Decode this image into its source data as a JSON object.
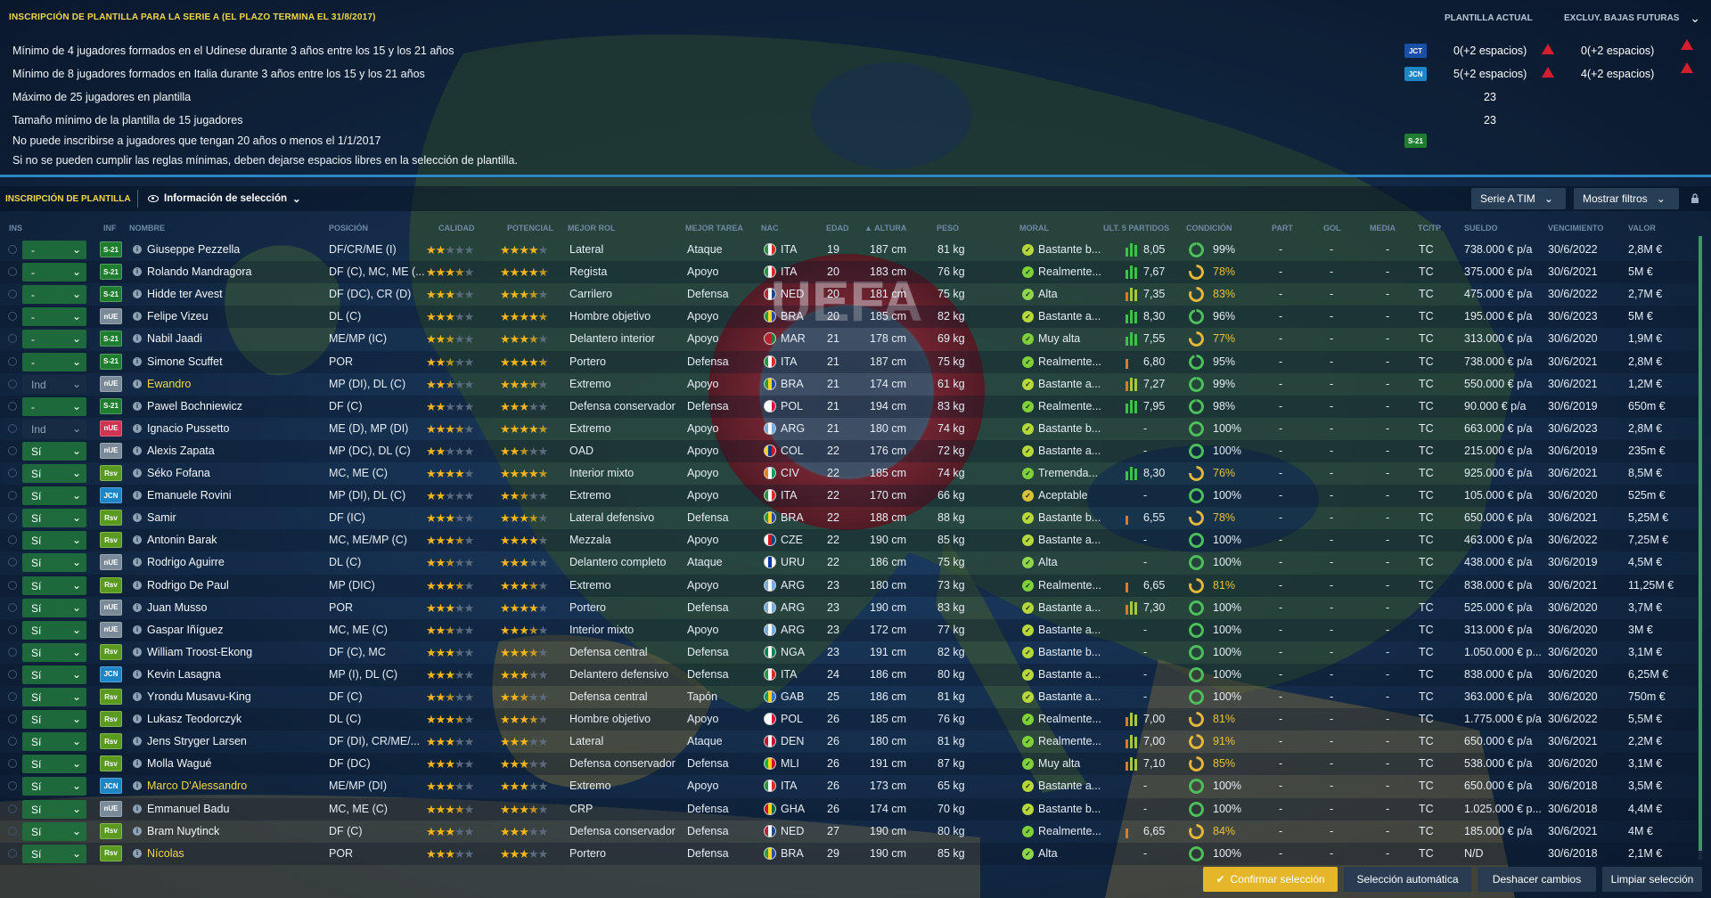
{
  "header": {
    "title": "INSCRIPCIÓN DE PLANTILLA PARA LA SERIE A (EL PLAZO TERMINA EL 31/8/2017)",
    "col_current": "PLANTILLA ACTUAL",
    "col_future": "EXCLUY. BAJAS FUTURAS"
  },
  "rules": [
    {
      "text": "Mínimo de 4 jugadores formados en el Udinese durante 3 años entre los 15 y los 21 años",
      "badge": "JCT",
      "current": "0(+2 espacios)",
      "future": "0(+2 espacios)",
      "warn": true
    },
    {
      "text": "Mínimo de 8 jugadores formados en Italia durante 3 años entre los 15 y los 21 años",
      "badge": "JCN",
      "current": "5(+2 espacios)",
      "future": "4(+2 espacios)",
      "warn": true
    },
    {
      "text": "Máximo de 25 jugadores en plantilla",
      "badge": "",
      "current": "23",
      "future": "",
      "warn": false
    },
    {
      "text": "Tamaño mínimo de la plantilla de 15 jugadores",
      "badge": "",
      "current": "23",
      "future": "",
      "warn": false
    },
    {
      "text": "No puede inscribirse a jugadores que tengan 20 años o menos el 1/1/2017",
      "badge": "S-21",
      "current": "",
      "future": "",
      "warn": false
    },
    {
      "text": "Si no se pueden cumplir las reglas mínimas, deben dejarse espacios libres en la selección de plantilla.",
      "badge": "",
      "current": "",
      "future": "",
      "warn": false
    }
  ],
  "toolbar": {
    "title": "INSCRIPCIÓN DE PLANTILLA",
    "view": "Información de selección",
    "competition": "Serie A TIM",
    "filters": "Mostrar filtros"
  },
  "columns": {
    "ins": "INS",
    "inf": "INF",
    "name": "NOMBRE",
    "position": "POSICIÓN",
    "ability": "CALIDAD",
    "potential": "POTENCIAL",
    "role": "MEJOR ROL",
    "duty": "MEJOR TAREA",
    "nat": "NAC",
    "age": "EDAD",
    "height": "ALTURA",
    "weight": "PESO",
    "morale": "MORAL",
    "form": "ULT. 5 PARTIDOS",
    "condition": "CONDICIÓN",
    "apps": "PART",
    "goals": "GOL",
    "avg": "MEDIA",
    "tctp": "TC/TP",
    "wage": "SUELDO",
    "expires": "VENCIMIENTO",
    "value": "VALOR"
  },
  "colors": {
    "s21": "#1f7d2f",
    "nue": "#7b8a99",
    "nue_red": "#cf3550",
    "rsv": "#5a9a1e",
    "jcn": "#1d86c7",
    "jct": "#1a4fa8",
    "accent": "#f0d84a",
    "green": "#21703c"
  },
  "players": [
    {
      "ins": "-",
      "badge": "S-21",
      "name": "Giuseppe Pezzella",
      "pos": "DF/CR/ME (I)",
      "ca": 2.0,
      "pa": 4.0,
      "role": "Lateral",
      "duty": "Ataque",
      "nat": "ITA",
      "age": "19",
      "height": "187 cm",
      "weight": "81 kg",
      "morale": "Bastante b...",
      "form": "8,05",
      "cond": "99%",
      "apps": "-",
      "goals": "-",
      "avg": "-",
      "tc": "TC",
      "wage": "738.000 € p/a",
      "exp": "30/6/2022",
      "value": "2,8M €"
    },
    {
      "ins": "-",
      "badge": "S-21",
      "name": "Rolando Mandragora",
      "pos": "DF (C), MC, ME (...",
      "ca": 3.5,
      "pa": 4.5,
      "role": "Regista",
      "duty": "Apoyo",
      "nat": "ITA",
      "age": "20",
      "height": "183 cm",
      "weight": "76 kg",
      "morale": "Realmente...",
      "form": "7,67",
      "cond": "78%",
      "apps": "-",
      "goals": "-",
      "avg": "-",
      "tc": "TC",
      "wage": "375.000 € p/a",
      "exp": "30/6/2021",
      "value": "5M €"
    },
    {
      "ins": "-",
      "badge": "S-21",
      "name": "Hidde ter Avest",
      "pos": "DF (DC), CR (D)",
      "ca": 3.0,
      "pa": 3.5,
      "role": "Carrilero",
      "duty": "Defensa",
      "nat": "NED",
      "age": "20",
      "height": "181 cm",
      "weight": "75 kg",
      "morale": "Alta",
      "form": "7,35",
      "cond": "83%",
      "apps": "-",
      "goals": "-",
      "avg": "-",
      "tc": "TC",
      "wage": "475.000 € p/a",
      "exp": "30/6/2022",
      "value": "2,7M €"
    },
    {
      "ins": "-",
      "badge": "nUE",
      "name": "Felipe Vizeu",
      "pos": "DL (C)",
      "ca": 3.0,
      "pa": 4.5,
      "role": "Hombre objetivo",
      "duty": "Apoyo",
      "nat": "BRA",
      "age": "20",
      "height": "185 cm",
      "weight": "82 kg",
      "morale": "Bastante a...",
      "form": "8,30",
      "cond": "96%",
      "apps": "-",
      "goals": "-",
      "avg": "-",
      "tc": "TC",
      "wage": "195.000 € p/a",
      "exp": "30/6/2023",
      "value": "5M €"
    },
    {
      "ins": "-",
      "badge": "S-21",
      "name": "Nabil Jaadi",
      "pos": "ME/MP (IC)",
      "ca": 2.5,
      "pa": 3.5,
      "role": "Delantero interior",
      "duty": "Apoyo",
      "nat": "MAR",
      "age": "21",
      "height": "178 cm",
      "weight": "69 kg",
      "morale": "Muy alta",
      "form": "7,55",
      "cond": "77%",
      "apps": "-",
      "goals": "-",
      "avg": "-",
      "tc": "TC",
      "wage": "313.000 € p/a",
      "exp": "30/6/2020",
      "value": "1,9M €"
    },
    {
      "ins": "-",
      "badge": "S-21",
      "name": "Simone Scuffet",
      "pos": "POR",
      "ca": 2.5,
      "pa": 4.5,
      "role": "Portero",
      "duty": "Defensa",
      "nat": "ITA",
      "age": "21",
      "height": "187 cm",
      "weight": "75 kg",
      "morale": "Realmente...",
      "form": "6,80",
      "cond": "95%",
      "apps": "-",
      "goals": "-",
      "avg": "-",
      "tc": "TC",
      "wage": "738.000 € p/a",
      "exp": "30/6/2021",
      "value": "2,8M €"
    },
    {
      "ins": "Ind",
      "badge": "nUE",
      "name": "Ewandro",
      "pos": "MP (DI), DL (C)",
      "ca": 2.5,
      "pa": 3.5,
      "role": "Extremo",
      "duty": "Apoyo",
      "nat": "BRA",
      "age": "21",
      "height": "174 cm",
      "weight": "61 kg",
      "morale": "Bastante a...",
      "form": "7,27",
      "cond": "99%",
      "apps": "-",
      "goals": "-",
      "avg": "-",
      "tc": "TC",
      "wage": "550.000 € p/a",
      "exp": "30/6/2021",
      "value": "1,2M €"
    },
    {
      "ins": "-",
      "badge": "S-21",
      "name": "Pawel Bochniewicz",
      "pos": "DF (C)",
      "ca": 2.0,
      "pa": 3.0,
      "role": "Defensa conservador",
      "duty": "Defensa",
      "nat": "POL",
      "age": "21",
      "height": "194 cm",
      "weight": "83 kg",
      "morale": "Realmente...",
      "form": "7,95",
      "cond": "98%",
      "apps": "-",
      "goals": "-",
      "avg": "-",
      "tc": "TC",
      "wage": "90.000 € p/a",
      "exp": "30/6/2019",
      "value": "650m €"
    },
    {
      "ins": "Ind",
      "badge": "nUE",
      "name": "Ignacio Pussetto",
      "pos": "ME (D), MP (DI)",
      "ca": 3.5,
      "pa": 4.5,
      "role": "Extremo",
      "duty": "Apoyo",
      "nat": "ARG",
      "age": "21",
      "height": "180 cm",
      "weight": "74 kg",
      "morale": "Bastante b...",
      "form": "-",
      "cond": "100%",
      "apps": "-",
      "goals": "-",
      "avg": "-",
      "tc": "TC",
      "wage": "663.000 € p/a",
      "exp": "30/6/2023",
      "value": "2,8M €"
    },
    {
      "ins": "Sí",
      "badge": "nUE",
      "name": "Alexis Zapata",
      "pos": "MP (DC), DL (C)",
      "ca": 2.0,
      "pa": 2.5,
      "role": "OAD",
      "duty": "Apoyo",
      "nat": "COL",
      "age": "22",
      "height": "176 cm",
      "weight": "72 kg",
      "morale": "Bastante a...",
      "form": "-",
      "cond": "100%",
      "apps": "-",
      "goals": "-",
      "avg": "-",
      "tc": "TC",
      "wage": "215.000 € p/a",
      "exp": "30/6/2019",
      "value": "235m €"
    },
    {
      "ins": "Sí",
      "badge": "Rsv",
      "name": "Séko Fofana",
      "pos": "MC, ME (C)",
      "ca": 4.0,
      "pa": 4.5,
      "role": "Interior mixto",
      "duty": "Apoyo",
      "nat": "CIV",
      "age": "22",
      "height": "185 cm",
      "weight": "74 kg",
      "morale": "Tremenda...",
      "form": "8,30",
      "cond": "76%",
      "apps": "-",
      "goals": "-",
      "avg": "-",
      "tc": "TC",
      "wage": "925.000 € p/a",
      "exp": "30/6/2021",
      "value": "8,5M €"
    },
    {
      "ins": "Sí",
      "badge": "JCN",
      "name": "Emanuele Rovini",
      "pos": "MP (DI), DL (C)",
      "ca": 2.0,
      "pa": 2.5,
      "role": "Extremo",
      "duty": "Apoyo",
      "nat": "ITA",
      "age": "22",
      "height": "170 cm",
      "weight": "66 kg",
      "morale": "Aceptable",
      "form": "-",
      "cond": "100%",
      "apps": "-",
      "goals": "-",
      "avg": "-",
      "tc": "TC",
      "wage": "105.000 € p/a",
      "exp": "30/6/2020",
      "value": "525m €"
    },
    {
      "ins": "Sí",
      "badge": "Rsv",
      "name": "Samir",
      "pos": "DF (IC)",
      "ca": 3.0,
      "pa": 3.5,
      "role": "Lateral defensivo",
      "duty": "Defensa",
      "nat": "BRA",
      "age": "22",
      "height": "188 cm",
      "weight": "88 kg",
      "morale": "Bastante b...",
      "form": "6,55",
      "cond": "78%",
      "apps": "-",
      "goals": "-",
      "avg": "-",
      "tc": "TC",
      "wage": "650.000 € p/a",
      "exp": "30/6/2021",
      "value": "5,25M €"
    },
    {
      "ins": "Sí",
      "badge": "Rsv",
      "name": "Antonin Barak",
      "pos": "MC, ME/MP (C)",
      "ca": 3.5,
      "pa": 4.0,
      "role": "Mezzala",
      "duty": "Apoyo",
      "nat": "CZE",
      "age": "22",
      "height": "190 cm",
      "weight": "85 kg",
      "morale": "Bastante a...",
      "form": "-",
      "cond": "100%",
      "apps": "-",
      "goals": "-",
      "avg": "-",
      "tc": "TC",
      "wage": "463.000 € p/a",
      "exp": "30/6/2022",
      "value": "7,25M €"
    },
    {
      "ins": "Sí",
      "badge": "nUE",
      "name": "Rodrigo Aguirre",
      "pos": "DL (C)",
      "ca": 2.5,
      "pa": 3.0,
      "role": "Delantero completo",
      "duty": "Ataque",
      "nat": "URU",
      "age": "22",
      "height": "186 cm",
      "weight": "75 kg",
      "morale": "Alta",
      "form": "-",
      "cond": "100%",
      "apps": "-",
      "goals": "-",
      "avg": "-",
      "tc": "TC",
      "wage": "438.000 € p/a",
      "exp": "30/6/2019",
      "value": "4,5M €"
    },
    {
      "ins": "Sí",
      "badge": "Rsv",
      "name": "Rodrigo De Paul",
      "pos": "MP (DIC)",
      "ca": 3.5,
      "pa": 3.5,
      "role": "Extremo",
      "duty": "Apoyo",
      "nat": "ARG",
      "age": "23",
      "height": "180 cm",
      "weight": "73 kg",
      "morale": "Realmente...",
      "form": "6,65",
      "cond": "81%",
      "apps": "-",
      "goals": "-",
      "avg": "-",
      "tc": "TC",
      "wage": "838.000 € p/a",
      "exp": "30/6/2021",
      "value": "11,25M €"
    },
    {
      "ins": "Sí",
      "badge": "nUE",
      "name": "Juan Musso",
      "pos": "POR",
      "ca": 3.0,
      "pa": 4.0,
      "role": "Portero",
      "duty": "Defensa",
      "nat": "ARG",
      "age": "23",
      "height": "190 cm",
      "weight": "83 kg",
      "morale": "Bastante a...",
      "form": "7,30",
      "cond": "100%",
      "apps": "-",
      "goals": "-",
      "avg": "-",
      "tc": "TC",
      "wage": "525.000 € p/a",
      "exp": "30/6/2020",
      "value": "3,7M €"
    },
    {
      "ins": "Sí",
      "badge": "nUE",
      "name": "Gaspar Iñíguez",
      "pos": "MC, ME (C)",
      "ca": 2.5,
      "pa": 3.5,
      "role": "Interior mixto",
      "duty": "Apoyo",
      "nat": "ARG",
      "age": "23",
      "height": "172 cm",
      "weight": "77 kg",
      "morale": "Bastante a...",
      "form": "-",
      "cond": "100%",
      "apps": "-",
      "goals": "-",
      "avg": "-",
      "tc": "TC",
      "wage": "313.000 € p/a",
      "exp": "30/6/2020",
      "value": "3M €"
    },
    {
      "ins": "Sí",
      "badge": "Rsv",
      "name": "William Troost-Ekong",
      "pos": "DF (C), MC",
      "ca": 3.0,
      "pa": 3.5,
      "role": "Defensa central",
      "duty": "Defensa",
      "nat": "NGA",
      "age": "23",
      "height": "191 cm",
      "weight": "82 kg",
      "morale": "Bastante b...",
      "form": "-",
      "cond": "100%",
      "apps": "-",
      "goals": "-",
      "avg": "-",
      "tc": "TC",
      "wage": "1.050.000 € p...",
      "exp": "30/6/2020",
      "value": "3,1M €"
    },
    {
      "ins": "Sí",
      "badge": "JCN",
      "name": "Kevin Lasagna",
      "pos": "MP (I), DL (C)",
      "ca": 3.0,
      "pa": 3.0,
      "role": "Delantero defensivo",
      "duty": "Defensa",
      "nat": "ITA",
      "age": "24",
      "height": "186 cm",
      "weight": "80 kg",
      "morale": "Bastante a...",
      "form": "-",
      "cond": "100%",
      "apps": "-",
      "goals": "-",
      "avg": "-",
      "tc": "TC",
      "wage": "838.000 € p/a",
      "exp": "30/6/2020",
      "value": "6,25M €"
    },
    {
      "ins": "Sí",
      "badge": "Rsv",
      "name": "Yrondu Musavu-King",
      "pos": "DF (C)",
      "ca": 2.5,
      "pa": 2.5,
      "role": "Defensa central",
      "duty": "Tapón",
      "nat": "GAB",
      "age": "25",
      "height": "186 cm",
      "weight": "81 kg",
      "morale": "Bastante a...",
      "form": "-",
      "cond": "100%",
      "apps": "-",
      "goals": "-",
      "avg": "-",
      "tc": "TC",
      "wage": "363.000 € p/a",
      "exp": "30/6/2020",
      "value": "750m €"
    },
    {
      "ins": "Sí",
      "badge": "Rsv",
      "name": "Lukasz Teodorczyk",
      "pos": "DL (C)",
      "ca": 3.5,
      "pa": 3.5,
      "role": "Hombre objetivo",
      "duty": "Apoyo",
      "nat": "POL",
      "age": "26",
      "height": "185 cm",
      "weight": "76 kg",
      "morale": "Realmente...",
      "form": "7,00",
      "cond": "81%",
      "apps": "-",
      "goals": "-",
      "avg": "-",
      "tc": "TC",
      "wage": "1.775.000 € p/a",
      "exp": "30/6/2022",
      "value": "5,5M €"
    },
    {
      "ins": "Sí",
      "badge": "Rsv",
      "name": "Jens Stryger Larsen",
      "pos": "DF (DI), CR/ME/...",
      "ca": 3.0,
      "pa": 3.0,
      "role": "Lateral",
      "duty": "Ataque",
      "nat": "DEN",
      "age": "26",
      "height": "180 cm",
      "weight": "81 kg",
      "morale": "Realmente...",
      "form": "7,00",
      "cond": "91%",
      "apps": "-",
      "goals": "-",
      "avg": "-",
      "tc": "TC",
      "wage": "650.000 € p/a",
      "exp": "30/6/2021",
      "value": "2,2M €"
    },
    {
      "ins": "Sí",
      "badge": "Rsv",
      "name": "Molla Wagué",
      "pos": "DF (DC)",
      "ca": 3.0,
      "pa": 3.0,
      "role": "Defensa conservador",
      "duty": "Defensa",
      "nat": "MLI",
      "age": "26",
      "height": "191 cm",
      "weight": "87 kg",
      "morale": "Muy alta",
      "form": "7,10",
      "cond": "85%",
      "apps": "-",
      "goals": "-",
      "avg": "-",
      "tc": "TC",
      "wage": "538.000 € p/a",
      "exp": "30/6/2020",
      "value": "3,1M €"
    },
    {
      "ins": "Sí",
      "badge": "JCN",
      "name": "Marco D'Alessandro",
      "pos": "ME/MP (DI)",
      "ca": 3.0,
      "pa": 3.0,
      "role": "Extremo",
      "duty": "Apoyo",
      "nat": "ITA",
      "age": "26",
      "height": "173 cm",
      "weight": "65 kg",
      "morale": "Bastante a...",
      "form": "-",
      "cond": "100%",
      "apps": "-",
      "goals": "-",
      "avg": "-",
      "tc": "TC",
      "wage": "650.000 € p/a",
      "exp": "30/6/2018",
      "value": "3,5M €"
    },
    {
      "ins": "Sí",
      "badge": "nUE",
      "name": "Emmanuel Badu",
      "pos": "MC, ME (C)",
      "ca": 3.5,
      "pa": 3.5,
      "role": "CRP",
      "duty": "Defensa",
      "nat": "GHA",
      "age": "26",
      "height": "174 cm",
      "weight": "70 kg",
      "morale": "Bastante b...",
      "form": "-",
      "cond": "100%",
      "apps": "-",
      "goals": "-",
      "avg": "-",
      "tc": "TC",
      "wage": "1.025.000 € p...",
      "exp": "30/6/2018",
      "value": "4,4M €"
    },
    {
      "ins": "Sí",
      "badge": "Rsv",
      "name": "Bram Nuytinck",
      "pos": "DF (C)",
      "ca": 3.0,
      "pa": 3.0,
      "role": "Defensa conservador",
      "duty": "Defensa",
      "nat": "NED",
      "age": "27",
      "height": "190 cm",
      "weight": "80 kg",
      "morale": "Realmente...",
      "form": "6,65",
      "cond": "84%",
      "apps": "-",
      "goals": "-",
      "avg": "-",
      "tc": "TC",
      "wage": "185.000 € p/a",
      "exp": "30/6/2021",
      "value": "4M €"
    },
    {
      "ins": "Sí",
      "badge": "Rsv",
      "name": "Nícolas",
      "pos": "POR",
      "ca": 3.0,
      "pa": 3.0,
      "role": "Portero",
      "duty": "Defensa",
      "nat": "BRA",
      "age": "29",
      "height": "190 cm",
      "weight": "85 kg",
      "morale": "Alta",
      "form": "-",
      "cond": "100%",
      "apps": "-",
      "goals": "-",
      "avg": "-",
      "tc": "TC",
      "wage": "N/D",
      "exp": "30/6/2018",
      "value": "2,1M €"
    }
  ],
  "buttons": {
    "confirm": "Confirmar selección",
    "auto": "Selección automática",
    "undo": "Deshacer cambios",
    "clear": "Limpiar selección"
  }
}
